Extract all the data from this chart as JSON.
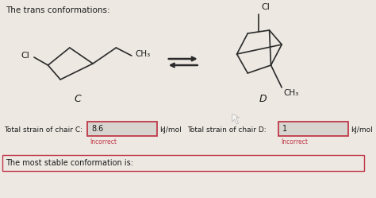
{
  "bg_color": "#ede8e2",
  "title_text": "The trans conformations:",
  "label_C": "C",
  "label_D": "D",
  "label_Cl_left": "Cl",
  "label_CH3_left": "CH₃",
  "label_Cl_right": "Cl",
  "label_CH3_right": "CH₃",
  "input_value_C": "8.6",
  "input_value_D": "1",
  "label_strain_C": "Total strain of chair C:",
  "label_strain_D": "Total strain of chair D:",
  "label_kJ_left": "kJ/mol",
  "label_kJ_right": "kJ/mol",
  "label_incorrect_left": "Incorrect",
  "label_incorrect_right": "Incorrect",
  "bottom_text": "The most stable conformation is:",
  "text_color": "#1a1a1a",
  "input_border_color": "#c0394a",
  "input_bg_color": "#d8d4cf",
  "incorrect_color": "#c0394a",
  "bottom_box_border": "#c0394a",
  "line_color": "#2a2a2a",
  "chair_lw": 1.2
}
